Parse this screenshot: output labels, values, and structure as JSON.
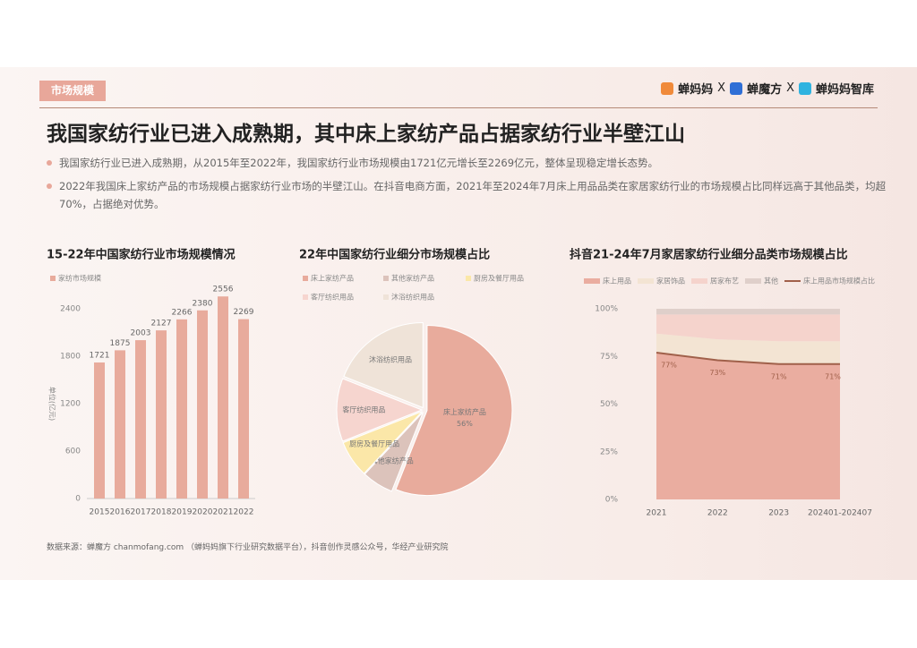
{
  "header": {
    "tag": "市场规模",
    "brands": [
      "蝉妈妈",
      "X",
      "蝉魔方",
      "X",
      "蝉妈妈智库"
    ]
  },
  "title": "我国家纺行业已进入成熟期，其中床上家纺产品占据家纺行业半壁江山",
  "bullets": [
    "我国家纺行业已进入成熟期，从2015年至2022年，我国家纺行业市场规模由1721亿元增长至2269亿元，整体呈现稳定增长态势。",
    "2022年我国床上家纺产品的市场规模占据家纺行业市场的半壁江山。在抖音电商方面，2021年至2024年7月床上用品品类在家居家纺行业的市场规模占比同样远高于其他品类，均超70%，占据绝对优势。"
  ],
  "source": "数据来源：蝉魔方 chanmofang.com （蝉妈妈旗下行业研究数据平台），抖音创作灵感公众号，华经产业研究院",
  "chart_data": [
    {
      "type": "bar",
      "title": "15-22年中国家纺行业市场规模情况",
      "ylabel": "单位(亿元)",
      "categories": [
        "2015",
        "2016",
        "2017",
        "2018",
        "2019",
        "2020",
        "2021",
        "2022"
      ],
      "series": [
        {
          "name": "家纺市场规模",
          "color": "#e8ab9c",
          "values": [
            1721,
            1875,
            2003,
            2127,
            2266,
            2380,
            2556,
            2269
          ]
        }
      ],
      "ylim": [
        0,
        2700
      ],
      "yticks": [
        0,
        600,
        1200,
        1800,
        2400
      ],
      "grid": false
    },
    {
      "type": "pie",
      "title": "22年中国家纺行业细分市场规模占比",
      "categories": [
        "床上家纺产品",
        "其他家纺产品",
        "厨房及餐厅用品",
        "客厅纺织用品",
        "沐浴纺织用品"
      ],
      "values": [
        56,
        6,
        7,
        12,
        19
      ],
      "value_labels": [
        "56%",
        null,
        null,
        null,
        null
      ],
      "colors": [
        "#e8ab9c",
        "#dcc3bb",
        "#fbe7a8",
        "#f6d5cf",
        "#efe3d8"
      ]
    },
    {
      "type": "area",
      "title": "抖音21-24年7月家居家纺行业细分品类市场规模占比",
      "categories": [
        "2021",
        "2022",
        "2023",
        "202401-202407"
      ],
      "series": [
        {
          "name": "床上用品",
          "color": "#eaada0",
          "values": [
            77,
            73,
            71,
            71
          ]
        },
        {
          "name": "家居饰品",
          "color": "#f3e4d3",
          "values": [
            10,
            11,
            12,
            12
          ]
        },
        {
          "name": "居家布艺",
          "color": "#f5d3cc",
          "values": [
            10,
            13,
            14,
            14
          ]
        },
        {
          "name": "其他",
          "color": "#dfcfca",
          "values": [
            3,
            3,
            3,
            3
          ]
        },
        {
          "name": "床上用品市场规模占比",
          "type": "line",
          "color": "#a0604a",
          "values": [
            77,
            73,
            71,
            71
          ],
          "value_labels": [
            "77%",
            "73%",
            "71%",
            "71%"
          ]
        }
      ],
      "ylim": [
        0,
        100
      ],
      "yticks": [
        {
          "value": 0,
          "label": "0%"
        },
        {
          "value": 25,
          "label": "25%"
        },
        {
          "value": 50,
          "label": "50%"
        },
        {
          "value": 75,
          "label": "75%"
        },
        {
          "value": 100,
          "label": "100%"
        }
      ]
    }
  ]
}
